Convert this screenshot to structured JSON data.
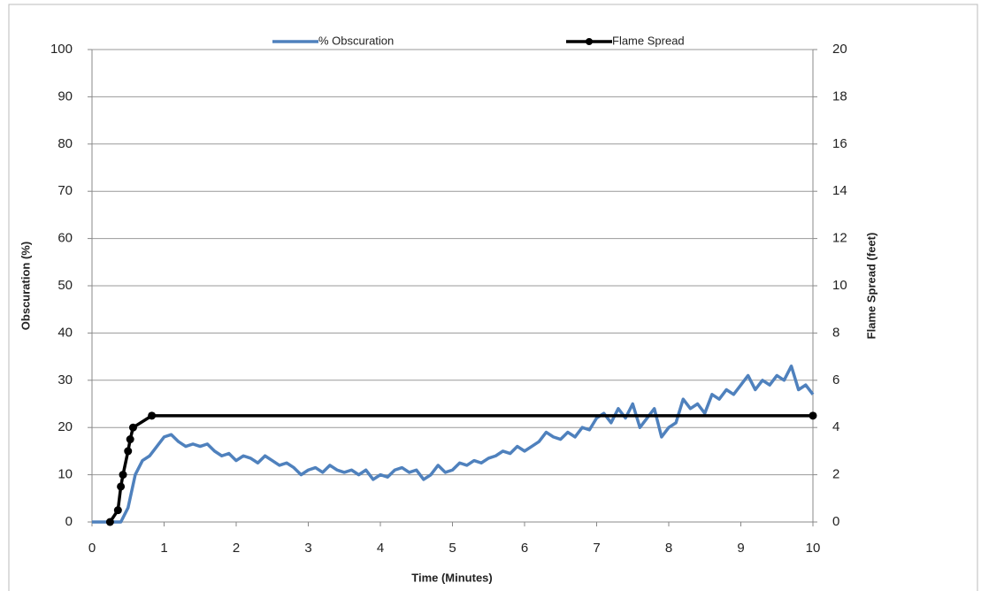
{
  "chart_data": {
    "type": "line",
    "xlabel": "Time (Minutes)",
    "ylabel": "Obscuration (%)",
    "y2label": "Flame Spread (feet)",
    "xlim": [
      0,
      10
    ],
    "xticks": [
      0,
      1,
      2,
      3,
      4,
      5,
      6,
      7,
      8,
      9,
      10
    ],
    "ylim": [
      0,
      100
    ],
    "yticks": [
      0,
      10,
      20,
      30,
      40,
      50,
      60,
      70,
      80,
      90,
      100
    ],
    "y2lim": [
      0,
      20
    ],
    "y2ticks": [
      0,
      2,
      4,
      6,
      8,
      10,
      12,
      14,
      16,
      18,
      20
    ],
    "grid": true,
    "legend": "top",
    "series": [
      {
        "name": "% Obscuration",
        "color": "#4f81bd",
        "axis": "y",
        "markers": false,
        "x": [
          0,
          0.1,
          0.2,
          0.3,
          0.4,
          0.5,
          0.6,
          0.7,
          0.8,
          0.9,
          1.0,
          1.1,
          1.2,
          1.3,
          1.4,
          1.5,
          1.6,
          1.7,
          1.8,
          1.9,
          2.0,
          2.1,
          2.2,
          2.3,
          2.4,
          2.5,
          2.6,
          2.7,
          2.8,
          2.9,
          3.0,
          3.1,
          3.2,
          3.3,
          3.4,
          3.5,
          3.6,
          3.7,
          3.8,
          3.9,
          4.0,
          4.1,
          4.2,
          4.3,
          4.4,
          4.5,
          4.6,
          4.7,
          4.8,
          4.9,
          5.0,
          5.1,
          5.2,
          5.3,
          5.4,
          5.5,
          5.6,
          5.7,
          5.8,
          5.9,
          6.0,
          6.1,
          6.2,
          6.3,
          6.4,
          6.5,
          6.6,
          6.7,
          6.8,
          6.9,
          7.0,
          7.1,
          7.2,
          7.3,
          7.4,
          7.5,
          7.6,
          7.7,
          7.8,
          7.9,
          8.0,
          8.1,
          8.2,
          8.3,
          8.4,
          8.5,
          8.6,
          8.7,
          8.8,
          8.9,
          9.0,
          9.1,
          9.2,
          9.3,
          9.4,
          9.5,
          9.6,
          9.7,
          9.8,
          9.9,
          10.0
        ],
        "values": [
          0,
          0,
          0,
          0,
          0,
          3,
          10,
          13,
          14,
          16,
          18,
          18.5,
          17,
          16,
          16.5,
          16,
          16.5,
          15,
          14,
          14.5,
          13,
          14,
          13.5,
          12.5,
          14,
          13,
          12,
          12.5,
          11.5,
          10,
          11,
          11.5,
          10.5,
          12,
          11,
          10.5,
          11,
          10,
          11,
          9,
          10,
          9.5,
          11,
          11.5,
          10.5,
          11,
          9,
          10,
          12,
          10.5,
          11,
          12.5,
          12,
          13,
          12.5,
          13.5,
          14,
          15,
          14.5,
          16,
          15,
          16,
          17,
          19,
          18,
          17.5,
          19,
          18,
          20,
          19.5,
          22,
          23,
          21,
          24,
          22,
          25,
          20,
          22,
          24,
          18,
          20,
          21,
          26,
          24,
          25,
          23,
          27,
          26,
          28,
          27,
          29,
          31,
          28,
          30,
          29,
          31,
          30,
          33,
          28,
          29,
          27
        ]
      },
      {
        "name": "Flame Spread",
        "color": "#000000",
        "axis": "y2",
        "markers": true,
        "x": [
          0.25,
          0.36,
          0.4,
          0.43,
          0.5,
          0.53,
          0.57,
          0.83,
          10
        ],
        "values": [
          0,
          0.5,
          1.5,
          2,
          3,
          3.5,
          4,
          4.5,
          4.5
        ]
      }
    ]
  }
}
